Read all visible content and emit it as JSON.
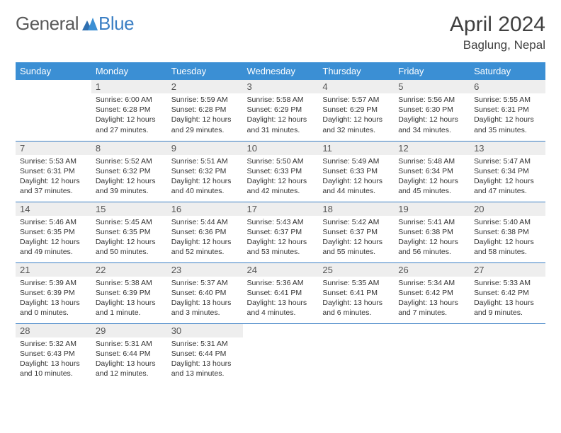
{
  "logo": {
    "part1": "General",
    "part2": "Blue"
  },
  "title": "April 2024",
  "location": "Baglung, Nepal",
  "colors": {
    "header_bg": "#3b8fd4",
    "header_text": "#ffffff",
    "border": "#3b7fc4",
    "daynum_bg": "#eeeeee",
    "text": "#333333",
    "logo_gray": "#5a5a5a",
    "logo_blue": "#3b7fc4"
  },
  "dayHeaders": [
    "Sunday",
    "Monday",
    "Tuesday",
    "Wednesday",
    "Thursday",
    "Friday",
    "Saturday"
  ],
  "weeks": [
    [
      {
        "empty": true
      },
      {
        "n": "1",
        "sr": "Sunrise: 6:00 AM",
        "ss": "Sunset: 6:28 PM",
        "d1": "Daylight: 12 hours",
        "d2": "and 27 minutes."
      },
      {
        "n": "2",
        "sr": "Sunrise: 5:59 AM",
        "ss": "Sunset: 6:28 PM",
        "d1": "Daylight: 12 hours",
        "d2": "and 29 minutes."
      },
      {
        "n": "3",
        "sr": "Sunrise: 5:58 AM",
        "ss": "Sunset: 6:29 PM",
        "d1": "Daylight: 12 hours",
        "d2": "and 31 minutes."
      },
      {
        "n": "4",
        "sr": "Sunrise: 5:57 AM",
        "ss": "Sunset: 6:29 PM",
        "d1": "Daylight: 12 hours",
        "d2": "and 32 minutes."
      },
      {
        "n": "5",
        "sr": "Sunrise: 5:56 AM",
        "ss": "Sunset: 6:30 PM",
        "d1": "Daylight: 12 hours",
        "d2": "and 34 minutes."
      },
      {
        "n": "6",
        "sr": "Sunrise: 5:55 AM",
        "ss": "Sunset: 6:31 PM",
        "d1": "Daylight: 12 hours",
        "d2": "and 35 minutes."
      }
    ],
    [
      {
        "n": "7",
        "sr": "Sunrise: 5:53 AM",
        "ss": "Sunset: 6:31 PM",
        "d1": "Daylight: 12 hours",
        "d2": "and 37 minutes."
      },
      {
        "n": "8",
        "sr": "Sunrise: 5:52 AM",
        "ss": "Sunset: 6:32 PM",
        "d1": "Daylight: 12 hours",
        "d2": "and 39 minutes."
      },
      {
        "n": "9",
        "sr": "Sunrise: 5:51 AM",
        "ss": "Sunset: 6:32 PM",
        "d1": "Daylight: 12 hours",
        "d2": "and 40 minutes."
      },
      {
        "n": "10",
        "sr": "Sunrise: 5:50 AM",
        "ss": "Sunset: 6:33 PM",
        "d1": "Daylight: 12 hours",
        "d2": "and 42 minutes."
      },
      {
        "n": "11",
        "sr": "Sunrise: 5:49 AM",
        "ss": "Sunset: 6:33 PM",
        "d1": "Daylight: 12 hours",
        "d2": "and 44 minutes."
      },
      {
        "n": "12",
        "sr": "Sunrise: 5:48 AM",
        "ss": "Sunset: 6:34 PM",
        "d1": "Daylight: 12 hours",
        "d2": "and 45 minutes."
      },
      {
        "n": "13",
        "sr": "Sunrise: 5:47 AM",
        "ss": "Sunset: 6:34 PM",
        "d1": "Daylight: 12 hours",
        "d2": "and 47 minutes."
      }
    ],
    [
      {
        "n": "14",
        "sr": "Sunrise: 5:46 AM",
        "ss": "Sunset: 6:35 PM",
        "d1": "Daylight: 12 hours",
        "d2": "and 49 minutes."
      },
      {
        "n": "15",
        "sr": "Sunrise: 5:45 AM",
        "ss": "Sunset: 6:35 PM",
        "d1": "Daylight: 12 hours",
        "d2": "and 50 minutes."
      },
      {
        "n": "16",
        "sr": "Sunrise: 5:44 AM",
        "ss": "Sunset: 6:36 PM",
        "d1": "Daylight: 12 hours",
        "d2": "and 52 minutes."
      },
      {
        "n": "17",
        "sr": "Sunrise: 5:43 AM",
        "ss": "Sunset: 6:37 PM",
        "d1": "Daylight: 12 hours",
        "d2": "and 53 minutes."
      },
      {
        "n": "18",
        "sr": "Sunrise: 5:42 AM",
        "ss": "Sunset: 6:37 PM",
        "d1": "Daylight: 12 hours",
        "d2": "and 55 minutes."
      },
      {
        "n": "19",
        "sr": "Sunrise: 5:41 AM",
        "ss": "Sunset: 6:38 PM",
        "d1": "Daylight: 12 hours",
        "d2": "and 56 minutes."
      },
      {
        "n": "20",
        "sr": "Sunrise: 5:40 AM",
        "ss": "Sunset: 6:38 PM",
        "d1": "Daylight: 12 hours",
        "d2": "and 58 minutes."
      }
    ],
    [
      {
        "n": "21",
        "sr": "Sunrise: 5:39 AM",
        "ss": "Sunset: 6:39 PM",
        "d1": "Daylight: 13 hours",
        "d2": "and 0 minutes."
      },
      {
        "n": "22",
        "sr": "Sunrise: 5:38 AM",
        "ss": "Sunset: 6:39 PM",
        "d1": "Daylight: 13 hours",
        "d2": "and 1 minute."
      },
      {
        "n": "23",
        "sr": "Sunrise: 5:37 AM",
        "ss": "Sunset: 6:40 PM",
        "d1": "Daylight: 13 hours",
        "d2": "and 3 minutes."
      },
      {
        "n": "24",
        "sr": "Sunrise: 5:36 AM",
        "ss": "Sunset: 6:41 PM",
        "d1": "Daylight: 13 hours",
        "d2": "and 4 minutes."
      },
      {
        "n": "25",
        "sr": "Sunrise: 5:35 AM",
        "ss": "Sunset: 6:41 PM",
        "d1": "Daylight: 13 hours",
        "d2": "and 6 minutes."
      },
      {
        "n": "26",
        "sr": "Sunrise: 5:34 AM",
        "ss": "Sunset: 6:42 PM",
        "d1": "Daylight: 13 hours",
        "d2": "and 7 minutes."
      },
      {
        "n": "27",
        "sr": "Sunrise: 5:33 AM",
        "ss": "Sunset: 6:42 PM",
        "d1": "Daylight: 13 hours",
        "d2": "and 9 minutes."
      }
    ],
    [
      {
        "n": "28",
        "sr": "Sunrise: 5:32 AM",
        "ss": "Sunset: 6:43 PM",
        "d1": "Daylight: 13 hours",
        "d2": "and 10 minutes."
      },
      {
        "n": "29",
        "sr": "Sunrise: 5:31 AM",
        "ss": "Sunset: 6:44 PM",
        "d1": "Daylight: 13 hours",
        "d2": "and 12 minutes."
      },
      {
        "n": "30",
        "sr": "Sunrise: 5:31 AM",
        "ss": "Sunset: 6:44 PM",
        "d1": "Daylight: 13 hours",
        "d2": "and 13 minutes."
      },
      {
        "empty": true
      },
      {
        "empty": true
      },
      {
        "empty": true
      },
      {
        "empty": true
      }
    ]
  ]
}
